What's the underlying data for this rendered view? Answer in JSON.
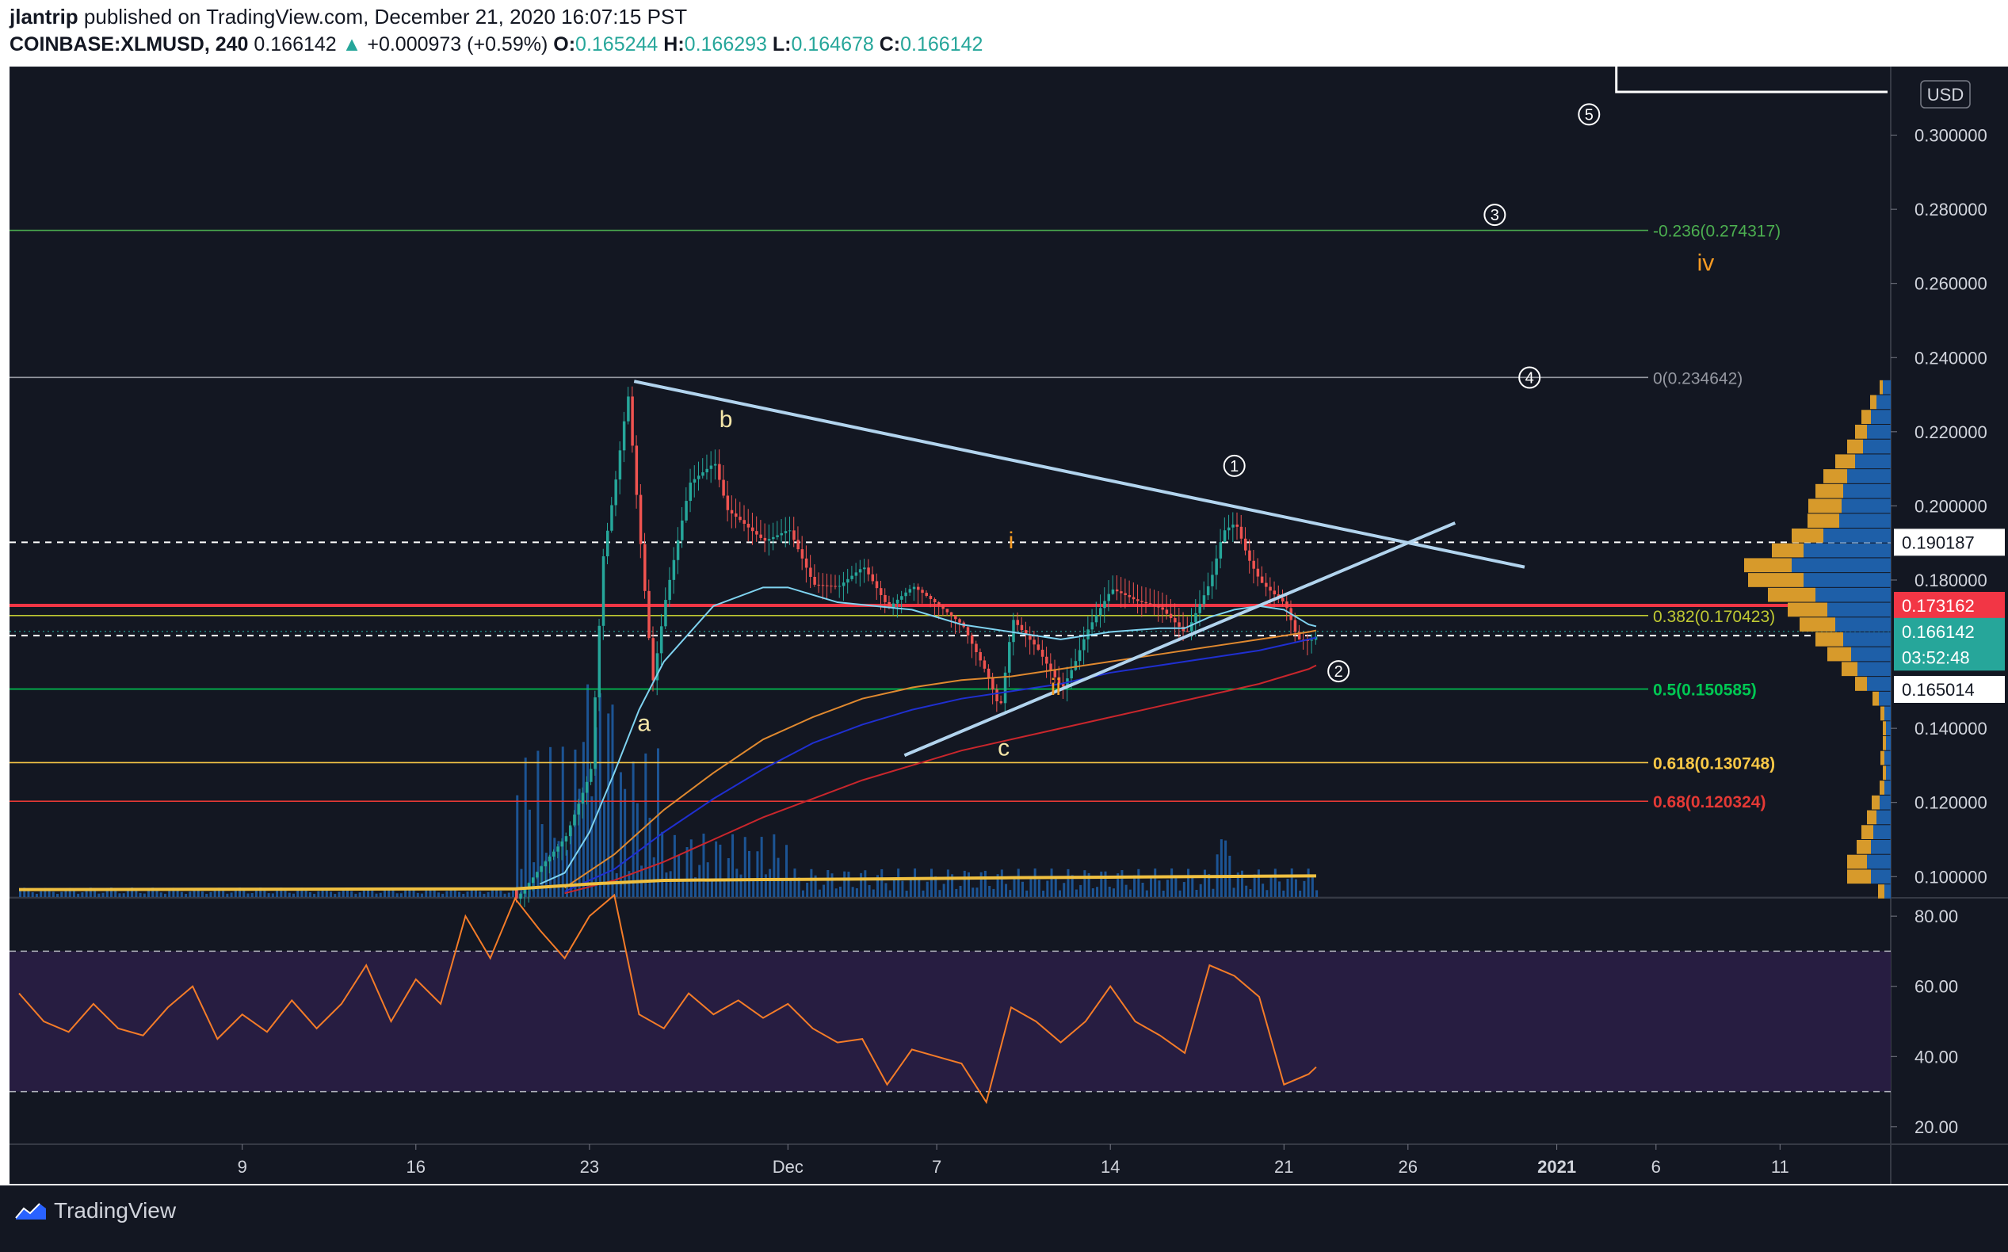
{
  "header": {
    "author": "jlantrip",
    "published_text": "published on TradingView.com, December 21, 2020 16:07:15 PST",
    "symbol": "COINBASE:XLMUSD, 240",
    "last": "0.166142",
    "change": "+0.000973 (+0.59%)",
    "o_label": "O:",
    "o_val": "0.165244",
    "h_label": "H:",
    "h_val": "0.166293",
    "l_label": "L:",
    "l_val": "0.164678",
    "c_label": "C:",
    "c_val": "0.166142",
    "up_arrow_icon": "triangle-up-icon"
  },
  "footer": {
    "brand": "TradingView",
    "logo_icon": "tradingview-logo-icon"
  },
  "chart_data": {
    "type": "candlestick",
    "currency": "USD",
    "price_ticks": [
      "0.300000",
      "0.280000",
      "0.260000",
      "0.240000",
      "0.220000",
      "0.200000",
      "0.180000",
      "0.140000",
      "0.120000",
      "0.100000"
    ],
    "price_tick_values": [
      0.3,
      0.28,
      0.26,
      0.24,
      0.22,
      0.2,
      0.18,
      0.14,
      0.12,
      0.1
    ],
    "ylim": [
      0.0945,
      0.3185
    ],
    "x_ticks": [
      {
        "label": "9",
        "day": 9
      },
      {
        "label": "16",
        "day": 16
      },
      {
        "label": "23",
        "day": 23
      },
      {
        "label": "Dec",
        "day": 31
      },
      {
        "label": "7",
        "day": 37
      },
      {
        "label": "14",
        "day": 44
      },
      {
        "label": "21",
        "day": 51
      },
      {
        "label": "26",
        "day": 56
      },
      {
        "label": "2021",
        "day": 62
      },
      {
        "label": "6",
        "day": 66
      },
      {
        "label": "11",
        "day": 71
      }
    ],
    "x_axis_note": "day index counted from Nov 0, 2020",
    "fib_levels": [
      {
        "label": "-0.236(0.274317)",
        "price": 0.274317,
        "color": "#4caf50"
      },
      {
        "label": "0(0.234642)",
        "price": 0.234642,
        "color": "#9598a1"
      },
      {
        "label": "0.382(0.170423)",
        "price": 0.170423,
        "color": "#c0ca33"
      },
      {
        "label": "0.5(0.150585)",
        "price": 0.150585,
        "color": "#00c853"
      },
      {
        "label": "0.618(0.130748)",
        "price": 0.130748,
        "color": "#f9c846"
      },
      {
        "label": "0.68(0.120324)",
        "price": 0.120324,
        "color": "#e53935"
      }
    ],
    "price_badges": [
      {
        "label": "0.190187",
        "price": 0.190187,
        "bg": "#ffffff",
        "fg": "#131722"
      },
      {
        "label": "0.173162",
        "price": 0.173162,
        "bg": "#f23645",
        "fg": "#ffffff"
      },
      {
        "label": "0.166142",
        "price": 0.166142,
        "bg": "#26a69a",
        "fg": "#ffffff"
      },
      {
        "label": "03:52:48",
        "price": 0.1592,
        "bg": "#26a69a",
        "fg": "#ffffff"
      },
      {
        "label": "0.165014",
        "price": 0.1505,
        "bg": "#ffffff",
        "fg": "#131722"
      }
    ],
    "horizontal_lines": [
      {
        "name": "resistance-dashed",
        "price": 0.190187,
        "style": "dashed",
        "color": "#ffffff"
      },
      {
        "name": "red-level",
        "price": 0.173162,
        "style": "solid",
        "color": "#f23645"
      },
      {
        "name": "support-dashed",
        "price": 0.165014,
        "style": "dashed",
        "color": "#ffffff"
      }
    ],
    "trendlines": [
      {
        "name": "upper-trendline",
        "from": [
          24.8,
          0.2336
        ],
        "to": [
          60.7,
          0.1835
        ]
      },
      {
        "name": "lower-trendline",
        "from": [
          35.7,
          0.1327
        ],
        "to": [
          57.9,
          0.1954
        ]
      }
    ],
    "wave_labels": [
      {
        "text": "a",
        "day": 25.2,
        "price": 0.1393,
        "color": "#f5e6a8"
      },
      {
        "text": "b",
        "day": 28.5,
        "price": 0.2213,
        "color": "#f5e6a8"
      },
      {
        "text": "c",
        "day": 39.7,
        "price": 0.1327,
        "color": "#f5e6a8"
      },
      {
        "text": "i",
        "day": 40.0,
        "price": 0.1885,
        "color": "#f59a23"
      },
      {
        "text": "ii",
        "day": 41.8,
        "price": 0.149,
        "color": "#f59a23"
      },
      {
        "text": "iv",
        "day": 68.0,
        "price": 0.2635,
        "color": "#f59a23"
      }
    ],
    "circle_labels": [
      {
        "text": "1",
        "day": 49.0,
        "price": 0.2108
      },
      {
        "text": "2",
        "day": 53.2,
        "price": 0.1554
      },
      {
        "text": "3",
        "day": 59.5,
        "price": 0.2785
      },
      {
        "text": "4",
        "day": 60.9,
        "price": 0.2346
      },
      {
        "text": "5",
        "day": 63.3,
        "price": 0.3056
      }
    ],
    "series": [
      {
        "name": "XLMUSD",
        "kind": "close",
        "x": [
          20,
          21,
          22,
          23,
          23.5,
          24,
          24.5,
          25,
          25.5,
          26,
          27,
          28,
          28.5,
          29,
          30,
          31,
          32,
          33,
          34,
          35,
          36,
          37,
          38,
          39,
          39.5,
          40,
          41,
          42,
          42.5,
          43,
          44,
          45,
          46,
          47,
          48,
          48.5,
          49,
          49.5,
          50,
          51,
          51.5,
          52,
          52.3
        ],
        "values": [
          0.0965,
          0.105,
          0.112,
          0.128,
          0.185,
          0.205,
          0.228,
          0.188,
          0.15,
          0.172,
          0.205,
          0.212,
          0.2,
          0.198,
          0.193,
          0.196,
          0.18,
          0.178,
          0.182,
          0.17,
          0.176,
          0.172,
          0.168,
          0.156,
          0.147,
          0.172,
          0.164,
          0.152,
          0.158,
          0.166,
          0.176,
          0.172,
          0.17,
          0.164,
          0.18,
          0.194,
          0.197,
          0.188,
          0.182,
          0.176,
          0.166,
          0.165,
          0.1661
        ]
      },
      {
        "name": "ema-cyan",
        "x": [
          21,
          22,
          23,
          24,
          25,
          26,
          28,
          30,
          31,
          33,
          36,
          38,
          40,
          42,
          44,
          46,
          47,
          48,
          49,
          50,
          51,
          52,
          52.3
        ],
        "values": [
          0.098,
          0.101,
          0.112,
          0.128,
          0.145,
          0.158,
          0.173,
          0.178,
          0.178,
          0.174,
          0.172,
          0.168,
          0.166,
          0.164,
          0.166,
          0.167,
          0.167,
          0.17,
          0.172,
          0.173,
          0.172,
          0.168,
          0.1675
        ]
      },
      {
        "name": "ema-orange",
        "x": [
          22,
          24,
          26,
          28,
          30,
          32,
          34,
          36,
          38,
          40,
          42,
          44,
          46,
          48,
          50,
          52,
          52.3
        ],
        "values": [
          0.097,
          0.106,
          0.118,
          0.128,
          0.137,
          0.143,
          0.148,
          0.151,
          0.153,
          0.154,
          0.156,
          0.158,
          0.16,
          0.162,
          0.164,
          0.166,
          0.1664
        ]
      },
      {
        "name": "ema-blue",
        "x": [
          22,
          24,
          26,
          28,
          30,
          32,
          34,
          36,
          38,
          40,
          42,
          44,
          46,
          48,
          50,
          52,
          52.3
        ],
        "values": [
          0.096,
          0.102,
          0.112,
          0.121,
          0.129,
          0.136,
          0.141,
          0.145,
          0.148,
          0.15,
          0.152,
          0.155,
          0.157,
          0.159,
          0.161,
          0.164,
          0.1645
        ]
      },
      {
        "name": "ema-red",
        "x": [
          22,
          24,
          26,
          28,
          30,
          32,
          34,
          36,
          38,
          40,
          42,
          44,
          46,
          48,
          50,
          52,
          52.3
        ],
        "values": [
          0.0955,
          0.099,
          0.104,
          0.11,
          0.116,
          0.121,
          0.126,
          0.13,
          0.134,
          0.137,
          0.14,
          0.143,
          0.146,
          0.149,
          0.152,
          0.156,
          0.157
        ]
      },
      {
        "name": "ema-yellow-volume",
        "x": [
          0,
          20,
          23,
          26,
          30,
          35,
          40,
          45,
          50,
          52.3
        ],
        "values": [
          0.0965,
          0.0967,
          0.098,
          0.099,
          0.0992,
          0.0994,
          0.0997,
          0.0999,
          0.1001,
          0.1002
        ]
      }
    ],
    "rsi": {
      "ylim": [
        15,
        85
      ],
      "ticks": [
        "80.00",
        "60.00",
        "40.00",
        "20.00"
      ],
      "tick_values": [
        80,
        60,
        40,
        20
      ],
      "bands": [
        70,
        30
      ],
      "x": [
        0,
        1,
        2,
        3,
        4,
        5,
        6,
        7,
        8,
        9,
        10,
        11,
        12,
        13,
        14,
        15,
        16,
        17,
        18,
        19,
        20,
        21,
        22,
        23,
        24,
        25,
        26,
        27,
        28,
        29,
        30,
        31,
        32,
        33,
        34,
        35,
        36,
        37,
        38,
        39,
        40,
        41,
        42,
        43,
        44,
        45,
        46,
        47,
        48,
        49,
        50,
        51,
        52,
        52.3
      ],
      "values": [
        58,
        50,
        47,
        55,
        48,
        46,
        54,
        60,
        45,
        52,
        47,
        56,
        48,
        55,
        66,
        50,
        62,
        55,
        80,
        68,
        85,
        76,
        68,
        80,
        86,
        52,
        48,
        58,
        52,
        56,
        51,
        55,
        48,
        44,
        45,
        32,
        42,
        40,
        38,
        27,
        54,
        50,
        44,
        50,
        60,
        50,
        46,
        41,
        66,
        63,
        57,
        32,
        35,
        37
      ]
    },
    "volume_profile": {
      "bins": [
        {
          "price": 0.232,
          "up": 10,
          "down": 4
        },
        {
          "price": 0.228,
          "up": 18,
          "down": 8
        },
        {
          "price": 0.224,
          "up": 25,
          "down": 12
        },
        {
          "price": 0.22,
          "up": 30,
          "down": 15
        },
        {
          "price": 0.216,
          "up": 35,
          "down": 20
        },
        {
          "price": 0.212,
          "up": 45,
          "down": 25
        },
        {
          "price": 0.208,
          "up": 55,
          "down": 30
        },
        {
          "price": 0.204,
          "up": 60,
          "down": 35
        },
        {
          "price": 0.2,
          "up": 62,
          "down": 42
        },
        {
          "price": 0.196,
          "up": 65,
          "down": 40
        },
        {
          "price": 0.192,
          "up": 85,
          "down": 40
        },
        {
          "price": 0.188,
          "up": 110,
          "down": 40
        },
        {
          "price": 0.184,
          "up": 125,
          "down": 60
        },
        {
          "price": 0.18,
          "up": 110,
          "down": 70
        },
        {
          "price": 0.176,
          "up": 95,
          "down": 60
        },
        {
          "price": 0.172,
          "up": 80,
          "down": 50
        },
        {
          "price": 0.168,
          "up": 70,
          "down": 45
        },
        {
          "price": 0.164,
          "up": 60,
          "down": 35
        },
        {
          "price": 0.16,
          "up": 50,
          "down": 30
        },
        {
          "price": 0.156,
          "up": 42,
          "down": 20
        },
        {
          "price": 0.152,
          "up": 30,
          "down": 15
        },
        {
          "price": 0.148,
          "up": 15,
          "down": 8
        },
        {
          "price": 0.144,
          "up": 8,
          "down": 5
        },
        {
          "price": 0.14,
          "up": 6,
          "down": 4
        },
        {
          "price": 0.136,
          "up": 6,
          "down": 4
        },
        {
          "price": 0.132,
          "up": 8,
          "down": 5
        },
        {
          "price": 0.128,
          "up": 6,
          "down": 4
        },
        {
          "price": 0.124,
          "up": 8,
          "down": 6
        },
        {
          "price": 0.12,
          "up": 14,
          "down": 10
        },
        {
          "price": 0.116,
          "up": 18,
          "down": 12
        },
        {
          "price": 0.112,
          "up": 22,
          "down": 15
        },
        {
          "price": 0.108,
          "up": 25,
          "down": 18
        },
        {
          "price": 0.104,
          "up": 30,
          "down": 25
        },
        {
          "price": 0.1,
          "up": 25,
          "down": 30
        },
        {
          "price": 0.096,
          "up": 8,
          "down": 8
        }
      ]
    },
    "colors": {
      "up": "#26a69a",
      "down": "#ef5350",
      "trendline": "#b2d4ee",
      "background": "#131722",
      "rsi_line": "#f57c28",
      "rsi_band": "#2a1e45"
    }
  }
}
